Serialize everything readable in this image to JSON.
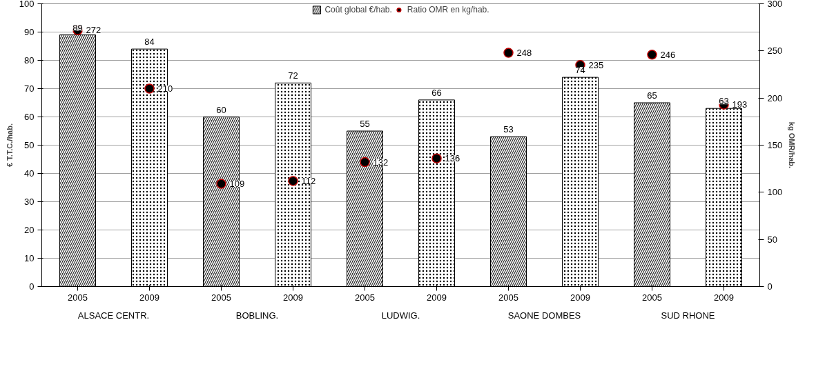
{
  "chart_data": {
    "type": "bar",
    "ylabel": "€ T.T.C./hab.",
    "y2label": "kg OMR/hab.",
    "categories": [
      "2005",
      "2009",
      "2005",
      "2009",
      "2005",
      "2009",
      "2005",
      "2009",
      "2005",
      "2009"
    ],
    "annotations": [
      "ALSACE CENTR.",
      "BOBLING.",
      "LUDWIG.",
      "SAONE DOMBES",
      "SUD RHONE"
    ],
    "series": [
      {
        "name": "Coût global €/hab.",
        "colors": [
          "#303030",
          "#ffffff",
          "#303030",
          "#ffffff",
          "#303030",
          "#ffffff",
          "#303030",
          "#ffffff",
          "#303030",
          "#ffffff"
        ],
        "values": [
          89,
          84,
          60,
          72,
          55,
          66,
          53,
          74,
          65,
          63
        ]
      },
      {
        "name": "Ratio OMR en kg/hab.",
        "type": "scatter",
        "axis": "y2",
        "color": "#000000",
        "values": [
          272,
          210,
          109,
          112,
          132,
          136,
          248,
          235,
          246,
          193
        ]
      }
    ],
    "ylim": [
      0,
      100
    ],
    "yticks": [
      0,
      10,
      20,
      30,
      40,
      50,
      60,
      70,
      80,
      90,
      100
    ],
    "y2lim": [
      0,
      300
    ],
    "y2ticks": [
      0,
      50,
      100,
      150,
      200,
      250,
      300
    ],
    "grid": "y",
    "legend": "top",
    "marker": "circle",
    "data_labels": true
  }
}
